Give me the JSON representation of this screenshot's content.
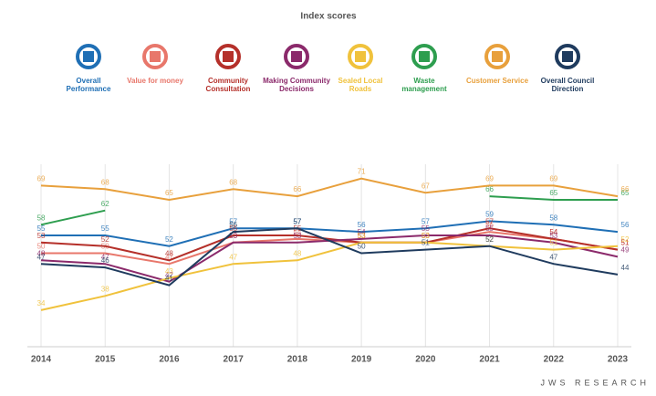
{
  "chart_data": {
    "type": "line",
    "title": "Index scores",
    "categories": [
      "2014",
      "2015",
      "2016",
      "2017",
      "2018",
      "2019",
      "2020",
      "2021",
      "2022",
      "2023"
    ],
    "series": [
      {
        "name": "Overall Performance",
        "color": "#1f6fb5",
        "values": [
          55,
          55,
          52,
          57,
          57,
          56,
          57,
          59,
          58,
          56
        ]
      },
      {
        "name": "Value for money",
        "color": "#e8776b",
        "values": [
          50,
          50,
          47,
          53,
          54,
          53,
          53,
          56,
          54,
          51
        ]
      },
      {
        "name": "Community Consultation",
        "color": "#b5302a",
        "values": [
          53,
          52,
          48,
          55,
          55,
          53,
          53,
          57,
          54,
          51
        ]
      },
      {
        "name": "Making Community Decisions",
        "color": "#8b2a6b",
        "values": [
          48,
          47,
          42,
          53,
          53,
          54,
          55,
          55,
          53,
          49
        ]
      },
      {
        "name": "Sealed Local Roads",
        "color": "#f0c23c",
        "values": [
          34,
          38,
          43,
          47,
          48,
          53,
          53,
          52,
          51,
          52
        ]
      },
      {
        "name": "Waste management",
        "color": "#2e9e4f",
        "values": [
          58,
          62,
          null,
          null,
          null,
          null,
          null,
          66,
          65,
          65
        ]
      },
      {
        "name": "Customer Service",
        "color": "#e8a03c",
        "values": [
          69,
          68,
          65,
          68,
          66,
          71,
          67,
          69,
          69,
          66
        ]
      },
      {
        "name": "Overall Council Direction",
        "color": "#1f3b5e",
        "values": [
          47,
          46,
          41,
          56,
          57,
          50,
          51,
          52,
          47,
          44
        ]
      }
    ],
    "ylim": [
      25,
      75
    ],
    "grid": true,
    "footer": "JWS RESEARCH"
  }
}
